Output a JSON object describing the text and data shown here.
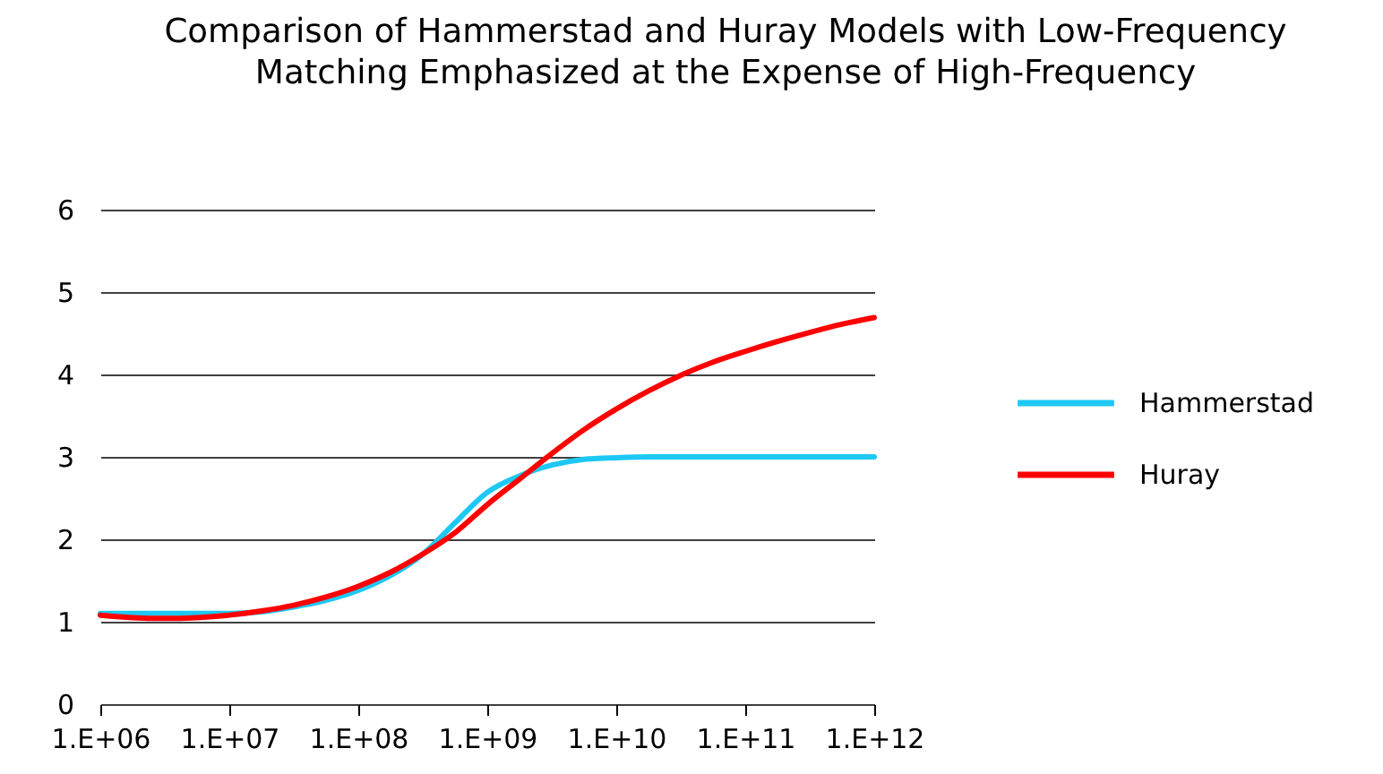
{
  "chart_data": {
    "type": "line",
    "title": "Comparison of Hammerstad and Huray Models with Low-Frequency Matching Emphasized at the Expense of High-Frequency",
    "categories": [
      "1.E+06",
      null,
      null,
      null,
      "1.E+07",
      null,
      null,
      null,
      "1.E+08",
      null,
      null,
      null,
      "1.E+09",
      null,
      null,
      null,
      "1.E+10",
      null,
      null,
      null,
      "1.E+11",
      null,
      null,
      null,
      "1.E+12"
    ],
    "series": [
      {
        "name": "Hammerstad",
        "color": "#1ec8f5",
        "values": [
          1.1,
          1.1,
          1.1,
          1.1,
          1.1,
          1.12,
          1.18,
          1.26,
          1.38,
          1.56,
          1.82,
          2.2,
          2.57,
          2.77,
          2.9,
          2.97,
          2.99,
          3.0,
          3.0,
          3.0,
          3.0,
          3.0,
          3.0,
          3.0,
          3.0
        ]
      },
      {
        "name": "Huray",
        "color": "#ff0000",
        "values": [
          1.08,
          1.05,
          1.04,
          1.05,
          1.08,
          1.13,
          1.2,
          1.3,
          1.43,
          1.6,
          1.82,
          2.08,
          2.42,
          2.73,
          3.04,
          3.33,
          3.58,
          3.8,
          3.99,
          4.15,
          4.28,
          4.4,
          4.51,
          4.61,
          4.69
        ]
      }
    ],
    "ylim": [
      0,
      6
    ],
    "yticks": [
      0,
      1,
      2,
      3,
      4,
      5,
      6
    ],
    "grid": "y",
    "legend": "right",
    "line_style": "solid"
  }
}
